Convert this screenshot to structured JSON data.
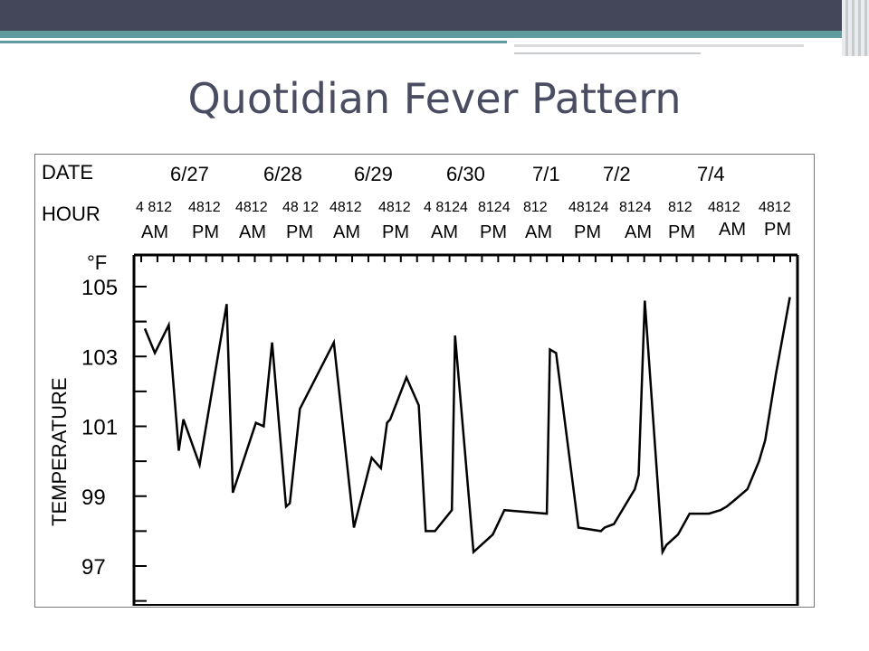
{
  "slide": {
    "title": "Quotidian Fever Pattern"
  },
  "colors": {
    "topbar": "#44465a",
    "accent": "#5f9c9f",
    "title": "#4a4c62",
    "line": "#000000"
  },
  "chart_data": {
    "type": "line",
    "row_labels": {
      "date": "DATE",
      "hour": "HOUR",
      "unit": "°F"
    },
    "ylabel": "TEMPERATURE",
    "ylim": [
      96,
      106
    ],
    "yticks": [
      105,
      103,
      101,
      99,
      97
    ],
    "grid": false,
    "legend": "none",
    "dates": [
      "6/27",
      "6/28",
      "6/29",
      "6/30",
      "7/1",
      "7/2",
      "7/4"
    ],
    "hour_labels": [
      "4 812",
      "4812",
      "4812",
      "48 12",
      "4812",
      "4812",
      "4 8124",
      "8124",
      "812",
      "48124",
      "8124",
      "812",
      "4812",
      "4812"
    ],
    "ampm": [
      "AM",
      "PM",
      "AM",
      "PM",
      "AM",
      "PM",
      "AM",
      "PM",
      "AM",
      "PM",
      "AM",
      "PM",
      "AM",
      "PM"
    ],
    "x_range": [
      0,
      84
    ],
    "series": [
      {
        "x": [
          0,
          1.3,
          3.1,
          4.4,
          5,
          7.1,
          10.6,
          11.4,
          14.4,
          15.4,
          16.5,
          18.3,
          18.8,
          20.1,
          24.5,
          27.1,
          29.4,
          30.6,
          31.4,
          31.8,
          33.9,
          35.5,
          36.4,
          37.6,
          39.8,
          40.2,
          42.6,
          45.1,
          46.6,
          52.1,
          52.5,
          53.3,
          56.2,
          59.1,
          59.6,
          60.8,
          63.5,
          64.0,
          64.8,
          67.1,
          67.6,
          69.1,
          69.6,
          70.6,
          71.4,
          73.1,
          74.6,
          75.4,
          76.5,
          78.1,
          79.6,
          80.4,
          81.8,
          83.6
        ],
        "y": [
          103.8,
          103.1,
          103.9,
          100.3,
          101.2,
          99.9,
          104.5,
          99.1,
          101.1,
          101.0,
          103.4,
          98.7,
          98.8,
          101.5,
          103.4,
          98.1,
          100.1,
          99.8,
          101.1,
          101.2,
          102.4,
          101.6,
          98.0,
          98.0,
          98.6,
          103.6,
          97.4,
          97.9,
          98.6,
          98.5,
          103.2,
          103.1,
          98.1,
          98.0,
          98.1,
          98.2,
          99.2,
          99.6,
          104.6,
          97.4,
          97.6,
          97.9,
          98.1,
          98.5,
          98.5,
          98.5,
          98.6,
          98.7,
          98.9,
          99.2,
          100.0,
          100.6,
          102.5,
          104.7
        ]
      }
    ]
  }
}
